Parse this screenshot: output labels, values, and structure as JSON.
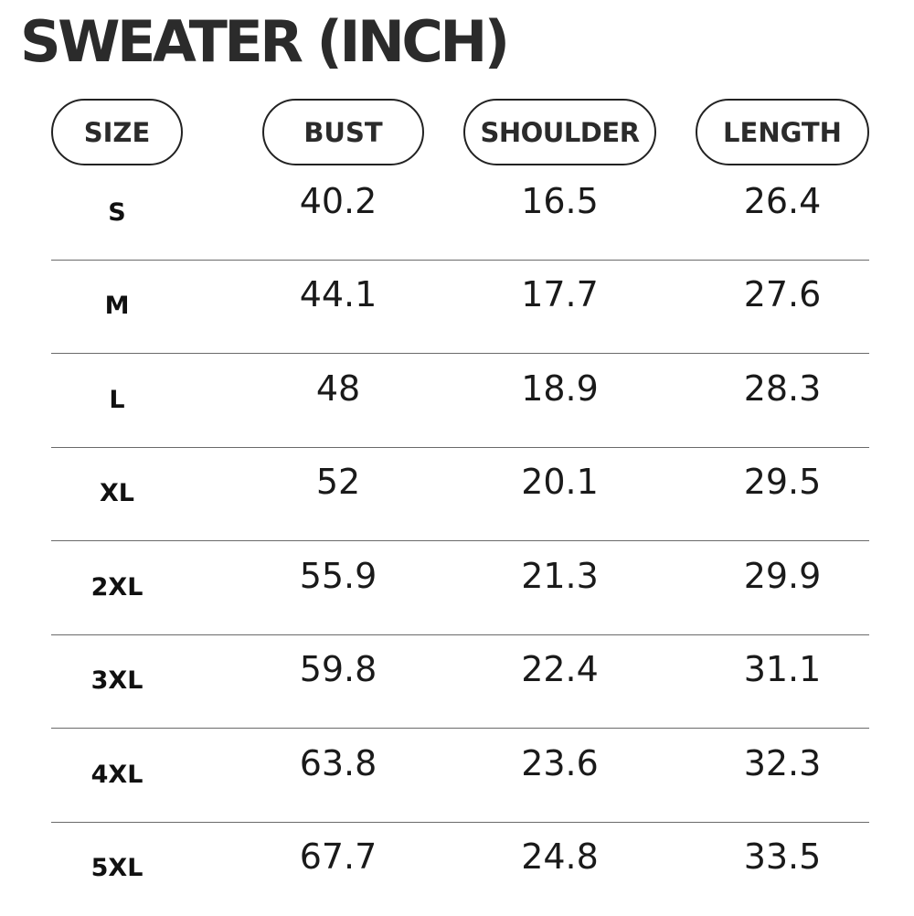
{
  "title": "SWEATER (INCH)",
  "headers": {
    "size": "SIZE",
    "bust": "BUST",
    "shoulder": "SHOULDER",
    "length": "LENGTH"
  },
  "rows": [
    {
      "size": "S",
      "bust": "40.2",
      "shoulder": "16.5",
      "length": "26.4"
    },
    {
      "size": "M",
      "bust": "44.1",
      "shoulder": "17.7",
      "length": "27.6"
    },
    {
      "size": "L",
      "bust": "48",
      "shoulder": "18.9",
      "length": "28.3"
    },
    {
      "size": "XL",
      "bust": "52",
      "shoulder": "20.1",
      "length": "29.5"
    },
    {
      "size": "2XL",
      "bust": "55.9",
      "shoulder": "21.3",
      "length": "29.9"
    },
    {
      "size": "3XL",
      "bust": "59.8",
      "shoulder": "22.4",
      "length": "31.1"
    },
    {
      "size": "4XL",
      "bust": "63.8",
      "shoulder": "23.6",
      "length": "32.3"
    },
    {
      "size": "5XL",
      "bust": "67.7",
      "shoulder": "24.8",
      "length": "33.5"
    }
  ]
}
